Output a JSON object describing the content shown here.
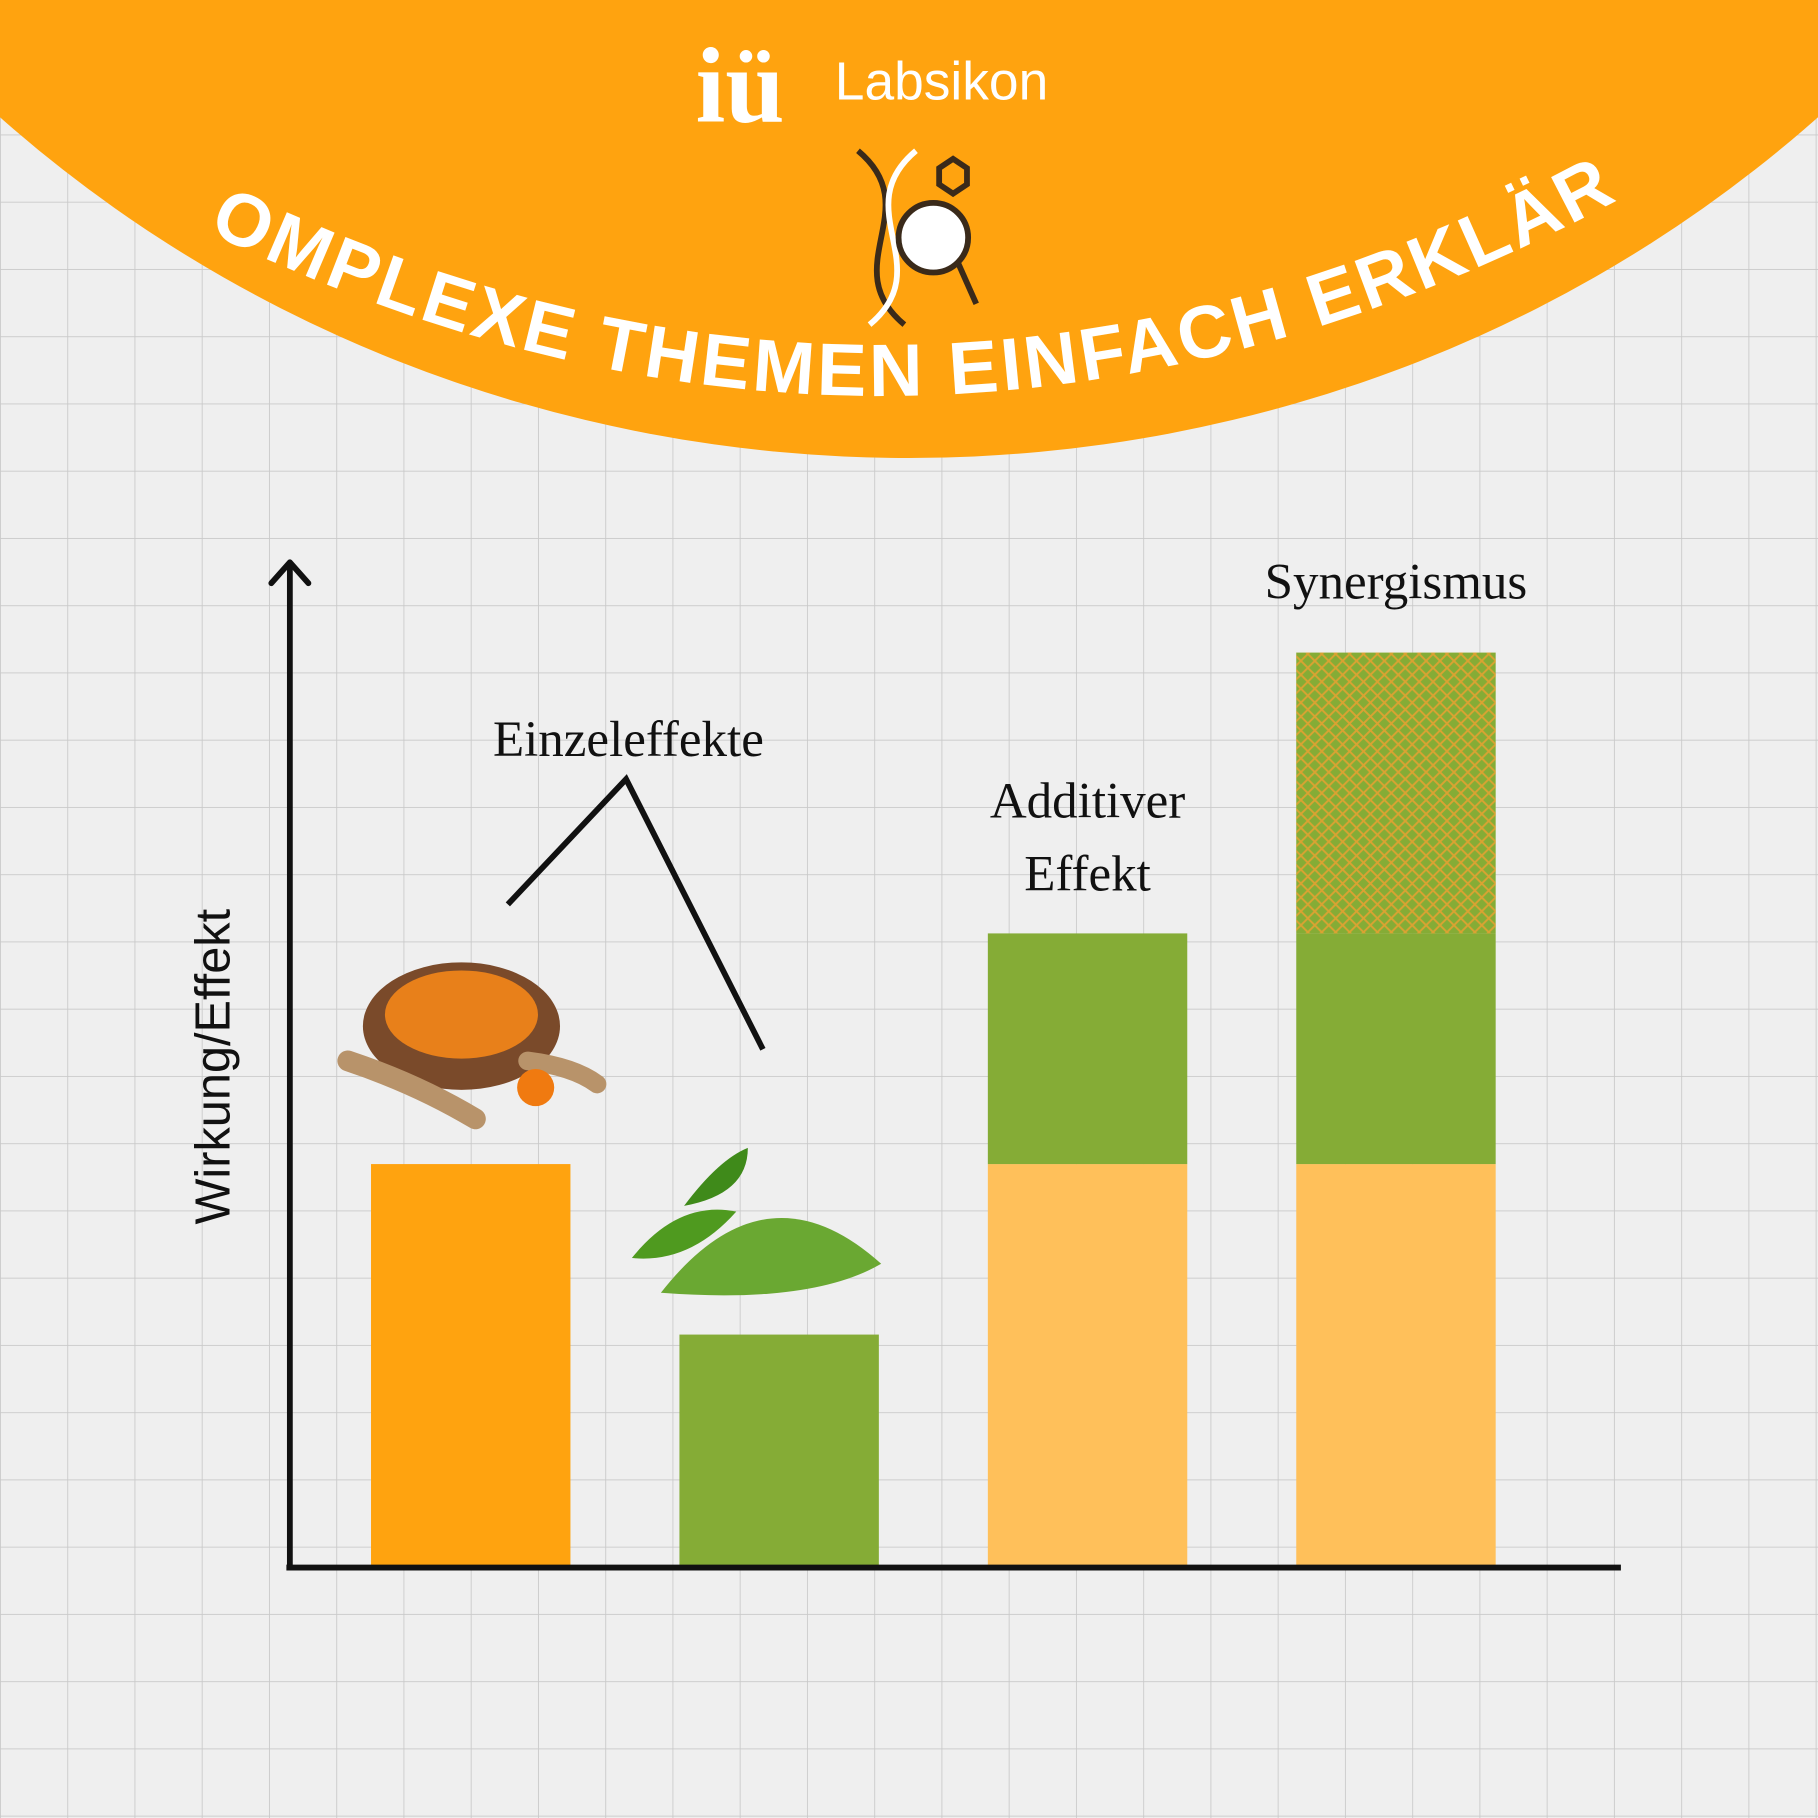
{
  "header": {
    "logo_mark": "iü",
    "logo_text": "Labsikon",
    "banner": "KOMPLEXE THEMEN EINFACH ERKLÄRT"
  },
  "chart_data": {
    "type": "bar",
    "stacked": true,
    "y_label": "Wirkung/Effekt",
    "ylim": [
      0,
      100
    ],
    "series": [
      {
        "colors": [
          "#ffa30f",
          null,
          "#ffc05a",
          "#ffc05a"
        ],
        "values": [
          40,
          null,
          40,
          40
        ]
      },
      {
        "color": "#85ac36",
        "values": [
          null,
          23,
          23,
          23
        ]
      },
      {
        "color": "#85ac36",
        "pattern": "crosshatch",
        "pattern_color": "#f0a030",
        "values": [
          null,
          null,
          null,
          28
        ]
      }
    ],
    "annotations": {
      "single": "Einzeleffekte",
      "additive": [
        "Additiver",
        "Effekt"
      ],
      "synergy": "Synergismus"
    }
  }
}
